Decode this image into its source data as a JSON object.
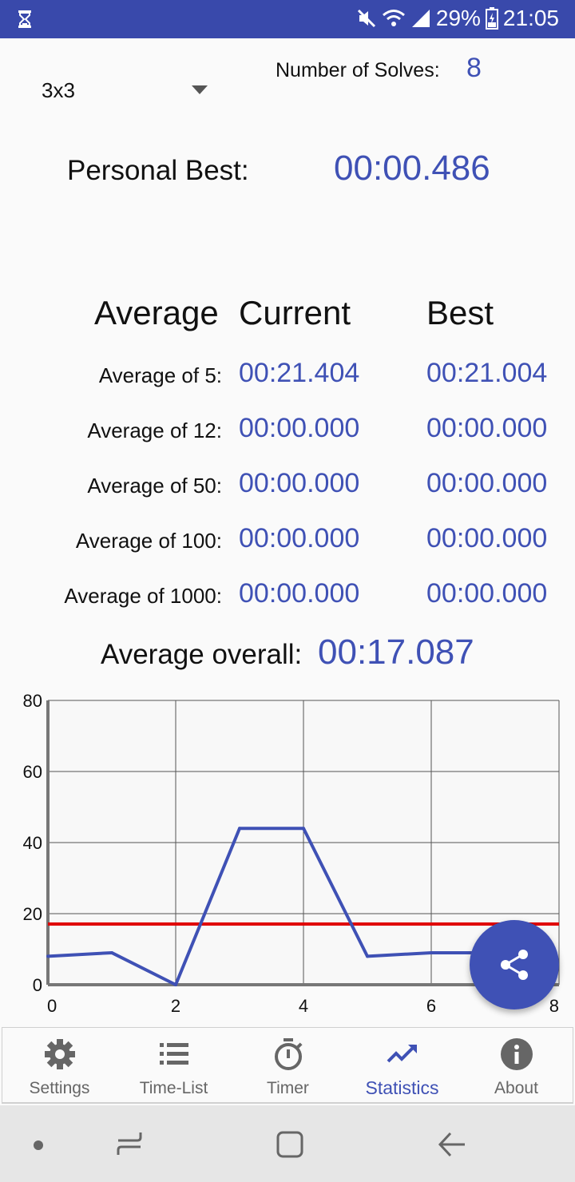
{
  "status_bar": {
    "battery": "29%",
    "time": "21:05"
  },
  "puzzle_selector": {
    "selected": "3x3"
  },
  "solves": {
    "label": "Number of Solves:",
    "value": "8"
  },
  "personal_best": {
    "label": "Personal Best:",
    "value": "00:00.486"
  },
  "averages_table": {
    "headers": {
      "average": "Average",
      "current": "Current",
      "best": "Best"
    },
    "rows": [
      {
        "label": "Average of 5:",
        "current": "00:21.404",
        "best": "00:21.004"
      },
      {
        "label": "Average of 12:",
        "current": "00:00.000",
        "best": "00:00.000"
      },
      {
        "label": "Average of 50:",
        "current": "00:00.000",
        "best": "00:00.000"
      },
      {
        "label": "Average of 100:",
        "current": "00:00.000",
        "best": "00:00.000"
      },
      {
        "label": "Average of 1000:",
        "current": "00:00.000",
        "best": "00:00.000"
      }
    ]
  },
  "average_overall": {
    "label": "Average overall:",
    "value": "00:17.087"
  },
  "chart_data": {
    "type": "line",
    "title": "",
    "xlabel": "",
    "ylabel": "",
    "xlim": [
      0,
      8
    ],
    "ylim": [
      0,
      80
    ],
    "x_ticks": [
      0,
      2,
      4,
      6,
      8
    ],
    "y_ticks": [
      0,
      20,
      40,
      60,
      80
    ],
    "grid": true,
    "series": [
      {
        "values": [
          [
            0,
            8
          ],
          [
            1,
            9
          ],
          [
            2,
            0
          ],
          [
            3,
            44
          ],
          [
            4,
            44
          ],
          [
            5,
            8
          ],
          [
            6,
            9
          ],
          [
            7,
            9
          ]
        ],
        "color": "#3f51b5"
      }
    ],
    "reference_line": {
      "y": 17.087,
      "color": "#e00000"
    }
  },
  "bottom_nav": {
    "items": [
      {
        "label": "Settings",
        "icon": "gear-icon"
      },
      {
        "label": "Time-List",
        "icon": "list-icon"
      },
      {
        "label": "Timer",
        "icon": "stopwatch-icon"
      },
      {
        "label": "Statistics",
        "icon": "trending-icon"
      },
      {
        "label": "About",
        "icon": "info-icon"
      }
    ],
    "active": "Statistics"
  },
  "fab": {
    "icon": "share-icon"
  },
  "colors": {
    "primary": "#3f51b5",
    "status_bar": "#3949ab",
    "reference": "#e00000"
  }
}
